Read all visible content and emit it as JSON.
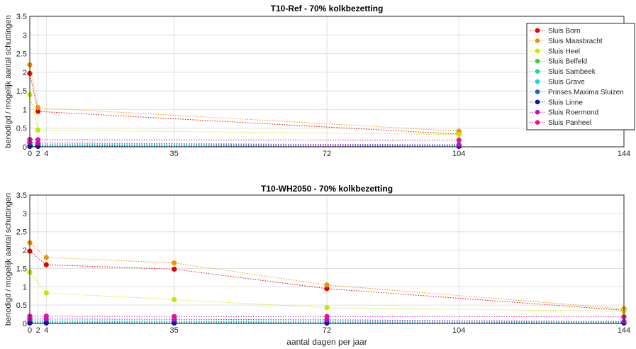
{
  "chart_data": [
    {
      "type": "line",
      "title": "T10-Ref - 70% kolkbezetting",
      "ylabel": "benodigd / mogelijk aantal schuttingen",
      "xlabel": "",
      "xlim": [
        0,
        144
      ],
      "ylim": [
        0,
        3.5
      ],
      "xticks": [
        0,
        2,
        4,
        35,
        72,
        104,
        144
      ],
      "yticks": [
        0,
        0.5,
        1,
        1.5,
        2,
        2.5,
        3,
        3.5
      ],
      "grid": true,
      "legend_position": "top-right",
      "x": [
        0,
        2,
        104
      ],
      "series": [
        {
          "name": "Sluis Born",
          "color": "#e60000",
          "values": [
            1.97,
            0.95,
            0.34
          ]
        },
        {
          "name": "Sluis Maasbracht",
          "color": "#f39200",
          "values": [
            2.2,
            1.05,
            0.42
          ]
        },
        {
          "name": "Sluis Heel",
          "color": "#c8e600",
          "values": [
            1.4,
            0.45,
            0.33
          ]
        },
        {
          "name": "Sluis Belfeld",
          "color": "#3cd232",
          "values": [
            0.05,
            0.05,
            0.04
          ]
        },
        {
          "name": "Sluis Sambeek",
          "color": "#1edc8c",
          "values": [
            0.03,
            0.03,
            0.03
          ]
        },
        {
          "name": "Sluis Grave",
          "color": "#14d7e6",
          "values": [
            0.08,
            0.07,
            0.06
          ]
        },
        {
          "name": "Prinses Maxima Sluizen",
          "color": "#1e64c8",
          "values": [
            0.02,
            0.02,
            0.02
          ]
        },
        {
          "name": "Sluis Linne",
          "color": "#1414a0",
          "values": [
            0.01,
            0.01,
            0.01
          ]
        },
        {
          "name": "Sluis Roermond",
          "color": "#b414d2",
          "values": [
            0.12,
            0.1,
            0.05
          ]
        },
        {
          "name": "Sluis Panheel",
          "color": "#e6148c",
          "values": [
            0.2,
            0.19,
            0.18
          ]
        }
      ]
    },
    {
      "type": "line",
      "title": "T10-WH2050 - 70% kolkbezetting",
      "ylabel": "benodigd / mogelijk aantal schuttingen",
      "xlabel": "aantal dagen per jaar",
      "xlim": [
        0,
        144
      ],
      "ylim": [
        0,
        3.5
      ],
      "xticks": [
        0,
        2,
        4,
        35,
        72,
        104,
        144
      ],
      "yticks": [
        0,
        0.5,
        1,
        1.5,
        2,
        2.5,
        3,
        3.5
      ],
      "grid": true,
      "x": [
        0,
        4,
        35,
        72,
        144
      ],
      "series": [
        {
          "name": "Sluis Born",
          "color": "#e60000",
          "values": [
            1.97,
            1.6,
            1.48,
            0.95,
            0.36
          ]
        },
        {
          "name": "Sluis Maasbracht",
          "color": "#f39200",
          "values": [
            2.2,
            1.8,
            1.65,
            1.05,
            0.4
          ]
        },
        {
          "name": "Sluis Heel",
          "color": "#c8e600",
          "values": [
            1.4,
            0.83,
            0.65,
            0.43,
            0.33
          ]
        },
        {
          "name": "Sluis Belfeld",
          "color": "#3cd232",
          "values": [
            0.05,
            0.05,
            0.05,
            0.04,
            0.04
          ]
        },
        {
          "name": "Sluis Sambeek",
          "color": "#1edc8c",
          "values": [
            0.03,
            0.03,
            0.03,
            0.03,
            0.03
          ]
        },
        {
          "name": "Sluis Grave",
          "color": "#14d7e6",
          "values": [
            0.08,
            0.08,
            0.07,
            0.07,
            0.06
          ]
        },
        {
          "name": "Prinses Maxima Sluizen",
          "color": "#1e64c8",
          "values": [
            0.02,
            0.02,
            0.02,
            0.02,
            0.02
          ]
        },
        {
          "name": "Sluis Linne",
          "color": "#1414a0",
          "values": [
            0.01,
            0.01,
            0.01,
            0.01,
            0.01
          ]
        },
        {
          "name": "Sluis Roermond",
          "color": "#b414d2",
          "values": [
            0.12,
            0.12,
            0.11,
            0.1,
            0.05
          ]
        },
        {
          "name": "Sluis Panheel",
          "color": "#e6148c",
          "values": [
            0.2,
            0.2,
            0.19,
            0.19,
            0.18
          ]
        }
      ]
    }
  ]
}
